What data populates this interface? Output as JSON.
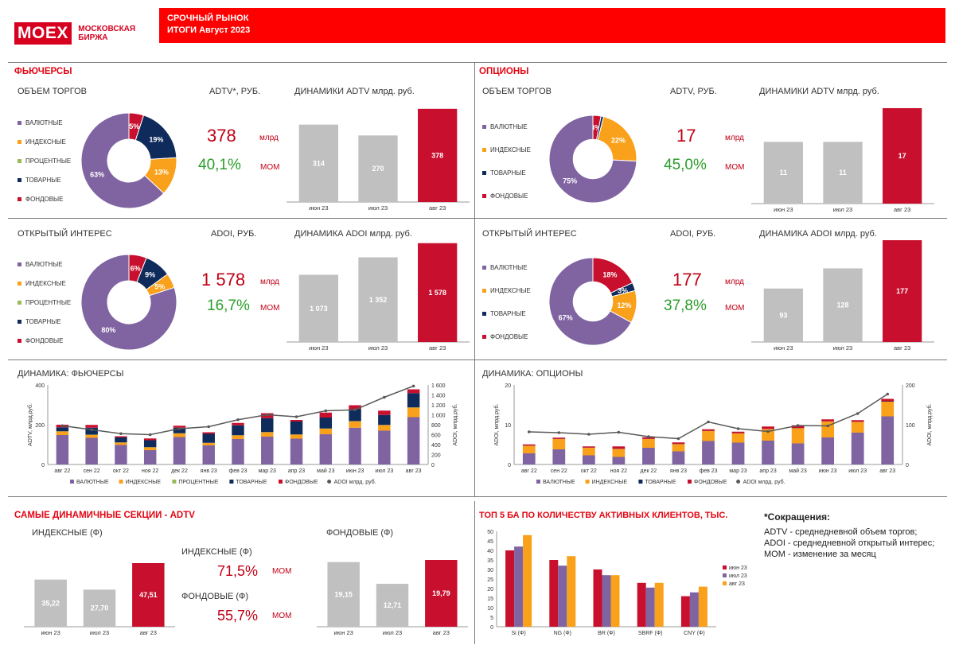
{
  "header": {
    "logo": "MOEX",
    "logo_sub_1": "МОСКОВСКАЯ",
    "logo_sub_2": "БИРЖА",
    "title_1": "СРОЧНЫЙ РЫНОК",
    "title_2": "ИТОГИ  Август 2023"
  },
  "colors": {
    "valyutnye": "#8064a2",
    "indeksnye": "#f9a11b",
    "procentnye": "#9bbb59",
    "tovarnye": "#0f2b5b",
    "fondovye": "#c8102e",
    "gray_bar": "#c0c0c0",
    "red_bar": "#c8102e",
    "line": "#595959"
  },
  "futures": {
    "section_title": "ФЬЮЧЕРСЫ",
    "volume": {
      "title": "ОБЪЕМ ТОРГОВ",
      "legend": [
        "ВАЛЮТНЫЕ",
        "ИНДЕКСНЫЕ",
        "ПРОЦЕНТНЫЕ",
        "ТОВАРНЫЕ",
        "ФОНДОВЫЕ"
      ],
      "kpi_label": "ADTV*, РУБ.",
      "kpi_value": "378",
      "kpi_unit": "млрд",
      "kpi_change": "40,1%",
      "kpi_change_label": "МОМ",
      "dyn_title": "ДИНАМИКИ ADTV млрд. руб."
    },
    "oi": {
      "title": "ОТКРЫТЫЙ ИНТЕРЕС",
      "legend": [
        "ВАЛЮТНЫЕ",
        "ИНДЕКСНЫЕ",
        "ПРОЦЕНТНЫЕ",
        "ТОВАРНЫЕ",
        "ФОНДОВЫЕ"
      ],
      "kpi_label": "ADOI, РУБ.",
      "kpi_value": "1 578",
      "kpi_unit": "млрд",
      "kpi_change": "16,7%",
      "kpi_change_label": "МОМ",
      "dyn_title": "ДИНАМИКА ADOI млрд. руб."
    },
    "dynamics_title": "ДИНАМИКА: ФЬЮЧЕРСЫ"
  },
  "options": {
    "section_title": "ОПЦИОНЫ",
    "volume": {
      "title": "ОБЪЕМ ТОРГОВ",
      "legend": [
        "ВАЛЮТНЫЕ",
        "ИНДЕКСНЫЕ",
        "ТОВАРНЫЕ",
        "ФОНДОВЫЕ"
      ],
      "kpi_label": "ADTV, РУБ.",
      "kpi_value": "17",
      "kpi_unit": "млрд",
      "kpi_change": "45,0%",
      "kpi_change_label": "МОМ",
      "dyn_title": "ДИНАМИКИ ADTV млрд. руб."
    },
    "oi": {
      "title": "ОТКРЫТЫЙ ИНТЕРЕС",
      "legend": [
        "ВАЛЮТНЫЕ",
        "ИНДЕКСНЫЕ",
        "ТОВАРНЫЕ",
        "ФОНДОВЫЕ"
      ],
      "kpi_label": "ADOI, РУБ.",
      "kpi_value": "177",
      "kpi_unit": "млрд",
      "kpi_change": "37,8%",
      "kpi_change_label": "МОМ",
      "dyn_title": "ДИНАМИКА ADOI млрд. руб."
    },
    "dynamics_title": "ДИНАМИКА: ОПЦИОНЫ"
  },
  "dynamic_sections": {
    "title": "САМЫЕ ДИНАМИЧНЫЕ СЕКЦИИ - ADTV",
    "chart1_title": "ИНДЕКСНЫЕ  (Ф)",
    "chart2_title": "ФОНДОВЫЕ  (Ф)",
    "kpi1_label": "ИНДЕКСНЫЕ  (Ф)",
    "kpi1_value": "71,5%",
    "kpi1_change_label": "МОМ",
    "kpi2_label": "ФОНДОВЫЕ  (Ф)",
    "kpi2_value": "55,7%",
    "kpi2_change_label": "МОМ"
  },
  "top5": {
    "title": "ТОП 5 БА ПО КОЛИЧЕСТВУ АКТИВНЫХ КЛИЕНТОВ, ТЫС."
  },
  "abbreviations": {
    "title": "*Сокращения:",
    "line1": "ADTV - среднедневной объем торгов;",
    "line2": "ADOI - среднедневной открытый интерес;",
    "line3": "МОМ - изменение за месяц"
  },
  "chart_data": [
    {
      "id": "fut_adtv_donut",
      "type": "pie",
      "labels": [
        "ВАЛЮТНЫЕ",
        "ИНДЕКСНЫЕ",
        "ПРОЦЕНТНЫЕ",
        "ТОВАРНЫЕ",
        "ФОНДОВЫЕ"
      ],
      "values": [
        63,
        13,
        0,
        19,
        5
      ],
      "value_labels": [
        "63%",
        "13%",
        "",
        "19%",
        "5%"
      ]
    },
    {
      "id": "fut_adtv_bars",
      "type": "bar",
      "categories": [
        "июн 23",
        "июл 23",
        "авг 23"
      ],
      "values": [
        314,
        270,
        378
      ],
      "value_labels": [
        "314",
        "270",
        "378"
      ],
      "ylim": [
        0,
        400
      ]
    },
    {
      "id": "fut_adoi_donut",
      "type": "pie",
      "labels": [
        "ВАЛЮТНЫЕ",
        "ИНДЕКСНЫЕ",
        "ПРОЦЕНТНЫЕ",
        "ТОВАРНЫЕ",
        "ФОНДОВЫЕ"
      ],
      "values": [
        80,
        5,
        0,
        9,
        6
      ],
      "value_labels": [
        "80%",
        "5%",
        "",
        "9%",
        "6%"
      ]
    },
    {
      "id": "fut_adoi_bars",
      "type": "bar",
      "categories": [
        "июн 23",
        "июл 23",
        "авг 23"
      ],
      "values": [
        1073,
        1352,
        1578
      ],
      "value_labels": [
        "1 073",
        "1 352",
        "1 578"
      ],
      "ylim": [
        0,
        1600
      ]
    },
    {
      "id": "opt_adtv_donut",
      "type": "pie",
      "labels": [
        "ВАЛЮТНЫЕ",
        "ИНДЕКСНЫЕ",
        "ТОВАРНЫЕ",
        "ФОНДОВЫЕ"
      ],
      "values": [
        75,
        22,
        1,
        3
      ],
      "value_labels": [
        "75%",
        "22%",
        "",
        "3%"
      ]
    },
    {
      "id": "opt_adtv_bars",
      "type": "bar",
      "categories": [
        "июн 23",
        "июл 23",
        "авг 23"
      ],
      "values": [
        11,
        11,
        17
      ],
      "value_labels": [
        "11",
        "11",
        "17"
      ],
      "ylim": [
        0,
        17
      ]
    },
    {
      "id": "opt_adoi_donut",
      "type": "pie",
      "labels": [
        "ВАЛЮТНЫЕ",
        "ИНДЕКСНЫЕ",
        "ТОВАРНЫЕ",
        "ФОНДОВЫЕ"
      ],
      "values": [
        67,
        12,
        3,
        18
      ],
      "value_labels": [
        "67%",
        "12%",
        "3%",
        "18%"
      ]
    },
    {
      "id": "opt_adoi_bars",
      "type": "bar",
      "categories": [
        "июн 23",
        "июл 23",
        "авг 23"
      ],
      "values": [
        93,
        128,
        177
      ],
      "value_labels": [
        "93",
        "128",
        "177"
      ],
      "ylim": [
        0,
        177
      ]
    },
    {
      "id": "fut_dynamics",
      "type": "bar",
      "categories": [
        "авг 22",
        "сен 22",
        "окт 22",
        "ноя 22",
        "дек 22",
        "янв 23",
        "фев 23",
        "мар 23",
        "апр 23",
        "май 23",
        "июн 23",
        "июл 23",
        "авг 23"
      ],
      "ylabel": "ADTV, млрд.руб.",
      "y2label": "ADOI, млрд.руб.",
      "ylim": [
        0,
        400
      ],
      "yticks": [
        "0",
        "200",
        "400"
      ],
      "y2lim": [
        0,
        1600
      ],
      "y2ticks": [
        "0",
        "200",
        "400",
        "600",
        "800",
        "1 000",
        "1 200",
        "1 400",
        "1 600"
      ],
      "series": [
        {
          "name": "ВАЛЮТНЫЕ",
          "values": [
            148,
            134,
            98,
            72,
            138,
            96,
            128,
            140,
            130,
            152,
            185,
            170,
            238
          ]
        },
        {
          "name": "ИНДЕКСНЫЕ",
          "values": [
            18,
            15,
            12,
            14,
            18,
            12,
            18,
            22,
            20,
            28,
            32,
            28,
            48
          ]
        },
        {
          "name": "ПРОЦЕНТНЫЕ",
          "values": [
            1,
            1,
            1,
            1,
            1,
            1,
            1,
            1,
            1,
            1,
            1,
            1,
            1
          ]
        },
        {
          "name": "ТОВАРНЫЕ",
          "values": [
            20,
            35,
            25,
            35,
            28,
            45,
            50,
            70,
            65,
            55,
            60,
            50,
            72
          ]
        },
        {
          "name": "ФОНДОВЫЕ",
          "values": [
            13,
            14,
            6,
            9,
            10,
            8,
            12,
            25,
            8,
            25,
            20,
            22,
            19
          ]
        }
      ],
      "line": {
        "name": "ADOI млрд. руб.",
        "values": [
          780,
          700,
          620,
          600,
          720,
          760,
          900,
          1000,
          960,
          1080,
          1100,
          1352,
          1578
        ]
      }
    },
    {
      "id": "opt_dynamics",
      "type": "bar",
      "categories": [
        "авг 22",
        "сен 22",
        "окт 22",
        "ноя 22",
        "дек 22",
        "янв 23",
        "фев 23",
        "мар 23",
        "апр 23",
        "май 23",
        "июн 23",
        "июл 23",
        "авг 23"
      ],
      "ylabel": "ADOI, млрд.руб.",
      "y2label": "ADOI, млрд.руб.",
      "ylim": [
        0,
        20
      ],
      "yticks": [
        "0",
        "10",
        "20"
      ],
      "y2lim": [
        0,
        200
      ],
      "y2ticks": [
        "0",
        "100",
        "200"
      ],
      "series": [
        {
          "name": "ВАЛЮТНЫЕ",
          "values": [
            2.8,
            3.8,
            2.3,
            1.9,
            4.2,
            3.3,
            5.9,
            5.5,
            6.0,
            5.3,
            6.8,
            8.0,
            12.1
          ]
        },
        {
          "name": "ИНДЕКСНЫЕ",
          "values": [
            1.9,
            2.6,
            1.9,
            2.0,
            2.2,
            1.8,
            2.5,
            2.3,
            2.9,
            3.8,
            4.0,
            2.7,
            3.7
          ]
        },
        {
          "name": "ТОВАРНЫЕ",
          "values": [
            0.05,
            0.05,
            0.05,
            0.05,
            0.05,
            0.05,
            0.05,
            0.05,
            0.05,
            0.05,
            0.05,
            0.05,
            0.1
          ]
        },
        {
          "name": "ФОНДОВЫЕ",
          "values": [
            0.3,
            0.3,
            0.3,
            0.6,
            0.4,
            0.4,
            0.4,
            0.4,
            0.6,
            0.7,
            0.5,
            0.4,
            0.6
          ]
        }
      ],
      "line": {
        "name": "ADOI млрд. руб.",
        "values": [
          82,
          80,
          76,
          81,
          70,
          65,
          107,
          90,
          83,
          98,
          97,
          128,
          177
        ]
      }
    },
    {
      "id": "indeks_f_bars",
      "type": "bar",
      "categories": [
        "июн 23",
        "июл 23",
        "авг 23"
      ],
      "values": [
        35.22,
        27.7,
        47.51
      ],
      "value_labels": [
        "35,22",
        "27,70",
        "47,51"
      ],
      "ylim": [
        0,
        47.51
      ]
    },
    {
      "id": "fond_f_bars",
      "type": "bar",
      "categories": [
        "июн 23",
        "июл 23",
        "авг 23"
      ],
      "values": [
        19.15,
        12.71,
        19.79
      ],
      "value_labels": [
        "19,15",
        "12,71",
        "19,79"
      ],
      "ylim": [
        0,
        19.79
      ]
    },
    {
      "id": "top5_clients",
      "type": "bar",
      "categories": [
        "Si (Ф)",
        "NG (Ф)",
        "BR (Ф)",
        "SBRF (Ф)",
        "CNY (Ф)"
      ],
      "ylim": [
        0,
        50
      ],
      "yticks": [
        "0",
        "5",
        "10",
        "15",
        "20",
        "25",
        "30",
        "35",
        "40",
        "45",
        "50"
      ],
      "series": [
        {
          "name": "июн 23",
          "values": [
            40,
            35,
            30,
            23,
            16
          ]
        },
        {
          "name": "июл 23",
          "values": [
            42,
            32,
            27,
            20.5,
            18
          ]
        },
        {
          "name": "авг 23",
          "values": [
            48,
            37,
            27,
            23,
            21
          ]
        }
      ]
    }
  ]
}
